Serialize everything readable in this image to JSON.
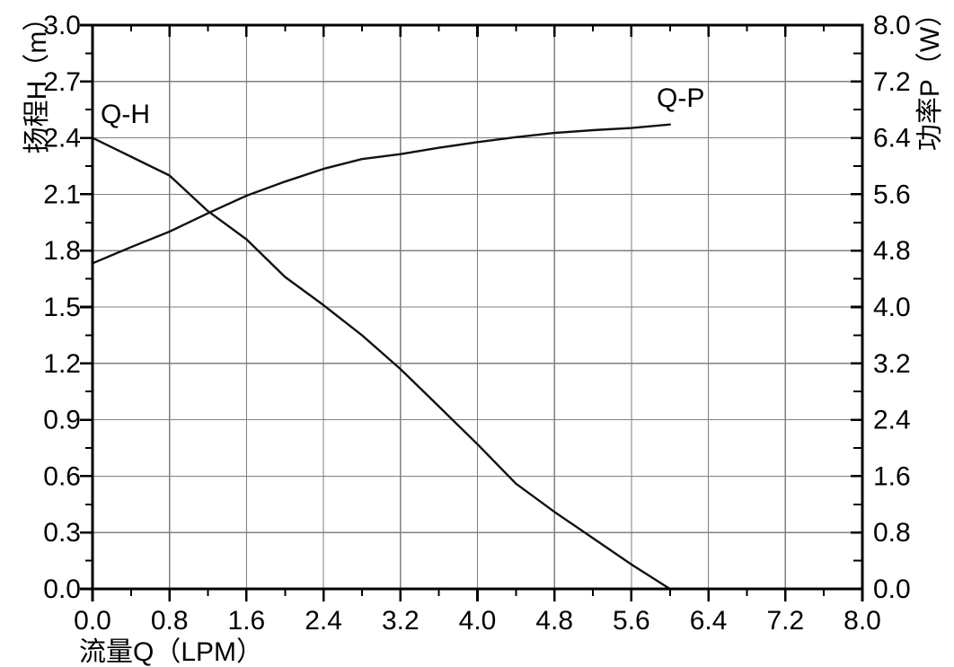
{
  "chart_data": {
    "type": "line",
    "title": "",
    "grid": true,
    "legend_position": "none",
    "x_axis": {
      "label": "流量Q（LPM）",
      "min": 0,
      "max": 8,
      "major_step": 0.8,
      "minor_step": 0.4,
      "tick_labels": [
        "0.0",
        "0.8",
        "1.6",
        "2.4",
        "3.2",
        "4.0",
        "4.8",
        "5.6",
        "6.4",
        "7.2",
        "8.0"
      ]
    },
    "y_axis_left": {
      "label": "扬程H（m）",
      "min": 0,
      "max": 3,
      "major_step": 0.3,
      "minor_step": 0.15,
      "tick_labels": [
        "0.0",
        "0.3",
        "0.6",
        "0.9",
        "1.2",
        "1.5",
        "1.8",
        "2.1",
        "2.4",
        "2.7",
        "3.0"
      ]
    },
    "y_axis_right": {
      "label": "功率P（W）",
      "min": 0,
      "max": 8,
      "major_step": 0.8,
      "minor_step": 0.4,
      "tick_labels": [
        "0.0",
        "0.8",
        "1.6",
        "2.4",
        "3.2",
        "4.0",
        "4.8",
        "5.6",
        "6.4",
        "7.2",
        "8.0"
      ]
    },
    "series": [
      {
        "name": "Q-H",
        "y_axis": "left",
        "points": [
          [
            0.0,
            2.4
          ],
          [
            0.4,
            2.3
          ],
          [
            0.8,
            2.2
          ],
          [
            1.2,
            2.01
          ],
          [
            1.6,
            1.86
          ],
          [
            2.0,
            1.66
          ],
          [
            2.4,
            1.51
          ],
          [
            2.8,
            1.35
          ],
          [
            3.2,
            1.17
          ],
          [
            3.6,
            0.97
          ],
          [
            4.0,
            0.77
          ],
          [
            4.4,
            0.56
          ],
          [
            4.8,
            0.41
          ],
          [
            5.2,
            0.27
          ],
          [
            5.6,
            0.13
          ],
          [
            6.0,
            0.0
          ]
        ]
      },
      {
        "name": "Q-P",
        "y_axis": "right",
        "points": [
          [
            0.0,
            4.62
          ],
          [
            0.4,
            4.85
          ],
          [
            0.8,
            5.07
          ],
          [
            1.2,
            5.33
          ],
          [
            1.6,
            5.58
          ],
          [
            2.0,
            5.78
          ],
          [
            2.4,
            5.96
          ],
          [
            2.8,
            6.1
          ],
          [
            3.2,
            6.17
          ],
          [
            3.6,
            6.26
          ],
          [
            4.0,
            6.34
          ],
          [
            4.4,
            6.41
          ],
          [
            4.8,
            6.47
          ],
          [
            5.2,
            6.51
          ],
          [
            5.6,
            6.54
          ],
          [
            6.0,
            6.59
          ]
        ]
      }
    ],
    "curve_labels": [
      {
        "text": "Q-H"
      },
      {
        "text": "Q-P"
      }
    ],
    "colors": {
      "axis": "#000000",
      "grid": "#7f7f7f",
      "curve": "#111111",
      "text": "#000000",
      "background": "#ffffff"
    }
  }
}
